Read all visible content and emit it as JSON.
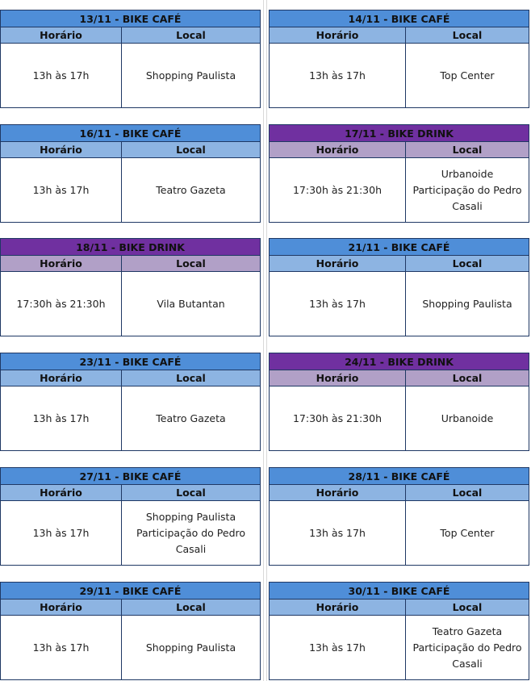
{
  "labels": {
    "horario": "Horário",
    "local": "Local"
  },
  "colors": {
    "cafe_title": "#4f8ed8",
    "cafe_header": "#8db4e2",
    "drink_title": "#7030a0",
    "drink_header": "#b1a0c7",
    "border": "#1f3864"
  },
  "events": [
    {
      "title": "13/11 - BIKE CAFÉ",
      "type": "cafe",
      "horario": "13h às 17h",
      "local": [
        "Shopping Paulista"
      ]
    },
    {
      "title": "14/11 - BIKE CAFÉ",
      "type": "cafe",
      "horario": "13h às 17h",
      "local": [
        "Top Center"
      ]
    },
    {
      "title": "16/11 - BIKE CAFÉ",
      "type": "cafe",
      "horario": "13h às 17h",
      "local": [
        "Teatro Gazeta"
      ]
    },
    {
      "title": "17/11 - BIKE DRINK",
      "type": "drink",
      "horario": "17:30h às 21:30h",
      "local": [
        "Urbanoide",
        "Participação do Pedro",
        "Casali"
      ]
    },
    {
      "title": "18/11 - BIKE DRINK",
      "type": "drink",
      "horario": "17:30h às 21:30h",
      "local": [
        "Vila Butantan"
      ]
    },
    {
      "title": "21/11 - BIKE CAFÉ",
      "type": "cafe",
      "horario": "13h às 17h",
      "local": [
        "Shopping Paulista"
      ]
    },
    {
      "title": "23/11 - BIKE CAFÉ",
      "type": "cafe",
      "horario": "13h às 17h",
      "local": [
        "Teatro Gazeta"
      ]
    },
    {
      "title": "24/11 - BIKE DRINK",
      "type": "drink",
      "horario": "17:30h às 21:30h",
      "local": [
        "Urbanoide"
      ]
    },
    {
      "title": "27/11 - BIKE CAFÉ",
      "type": "cafe",
      "horario": "13h às 17h",
      "local": [
        "Shopping Paulista",
        "Participação do Pedro",
        "Casali"
      ]
    },
    {
      "title": "28/11 - BIKE CAFÉ",
      "type": "cafe",
      "horario": "13h às 17h",
      "local": [
        "Top Center"
      ]
    },
    {
      "title": "29/11 - BIKE CAFÉ",
      "type": "cafe",
      "horario": "13h às 17h",
      "local": [
        "Shopping Paulista"
      ]
    },
    {
      "title": "30/11 - BIKE CAFÉ",
      "type": "cafe",
      "horario": "13h às 17h",
      "local": [
        "Teatro Gazeta",
        "Participação do Pedro",
        "Casali"
      ]
    }
  ]
}
